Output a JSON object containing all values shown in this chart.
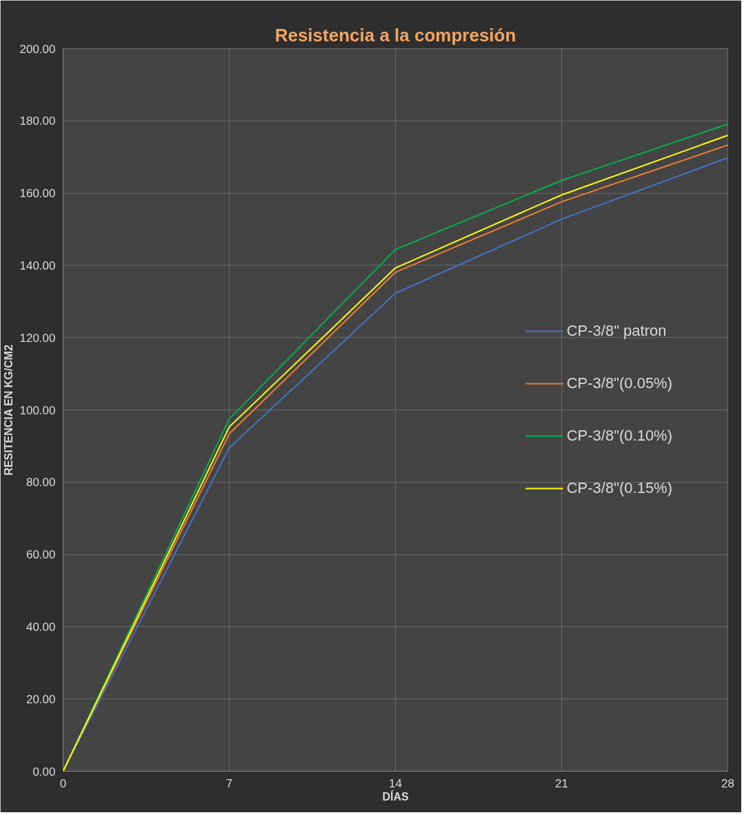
{
  "chart_data": {
    "type": "line",
    "title": "Resistencia a la compresión",
    "xlabel": "DÍAS",
    "ylabel": "RESITENCIA EN KG/CM2",
    "x": [
      0,
      7,
      14,
      21,
      28
    ],
    "series": [
      {
        "name": "CP-3/8\" patron",
        "color": "#4472c4",
        "values": [
          0,
          89.5,
          132.3,
          152.8,
          169.8
        ]
      },
      {
        "name": "CP-3/8\"(0.05%)",
        "color": "#ed7d31",
        "values": [
          0,
          93.4,
          138.1,
          157.6,
          173.3
        ]
      },
      {
        "name": "CP-3/8\"(0.10%)",
        "color": "#00b050",
        "values": [
          0,
          97.5,
          144.4,
          163.5,
          179.1
        ]
      },
      {
        "name": "CP-3/8\"(0.15%)",
        "color": "#ffff00",
        "values": [
          0,
          95.3,
          139.3,
          159.5,
          176.0
        ]
      }
    ],
    "xlim": [
      0,
      28
    ],
    "xticks": [
      0,
      7,
      14,
      21,
      28
    ],
    "ylim": [
      0,
      200
    ],
    "yticks": [
      {
        "value": 0,
        "label": "0.00"
      },
      {
        "value": 20,
        "label": "20.00"
      },
      {
        "value": 40,
        "label": "40.00"
      },
      {
        "value": 60,
        "label": "60.00"
      },
      {
        "value": 80,
        "label": "80.00"
      },
      {
        "value": 100,
        "label": "100.00"
      },
      {
        "value": 120,
        "label": "120.00"
      },
      {
        "value": 140,
        "label": "140.00"
      },
      {
        "value": 160,
        "label": "160.00"
      },
      {
        "value": 180,
        "label": "180.00"
      },
      {
        "value": 200,
        "label": "200.00"
      }
    ],
    "grid": true,
    "legend": "right",
    "marker": "none",
    "line_style": "solid"
  }
}
